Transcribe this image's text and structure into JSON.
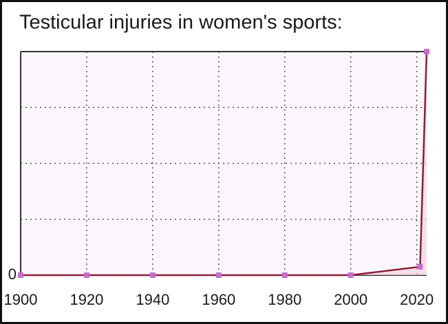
{
  "chart_data": {
    "type": "line",
    "title": "Testicular injuries in women's sports:",
    "x": [
      1900,
      1920,
      1940,
      1960,
      1980,
      2000,
      2021,
      2023
    ],
    "series": [
      {
        "color": "#8b1f35",
        "values": [
          0,
          0,
          0,
          0,
          0,
          0,
          0.15,
          4
        ]
      }
    ],
    "marker_color": "#c86cd0",
    "xlim": [
      1900,
      2023
    ],
    "xticks": [
      1900,
      1920,
      1940,
      1960,
      1980,
      2000,
      2020
    ],
    "ylim": [
      0,
      4
    ],
    "yticks": [
      0
    ],
    "ygrid": [
      1,
      2,
      3
    ],
    "grid": true
  }
}
